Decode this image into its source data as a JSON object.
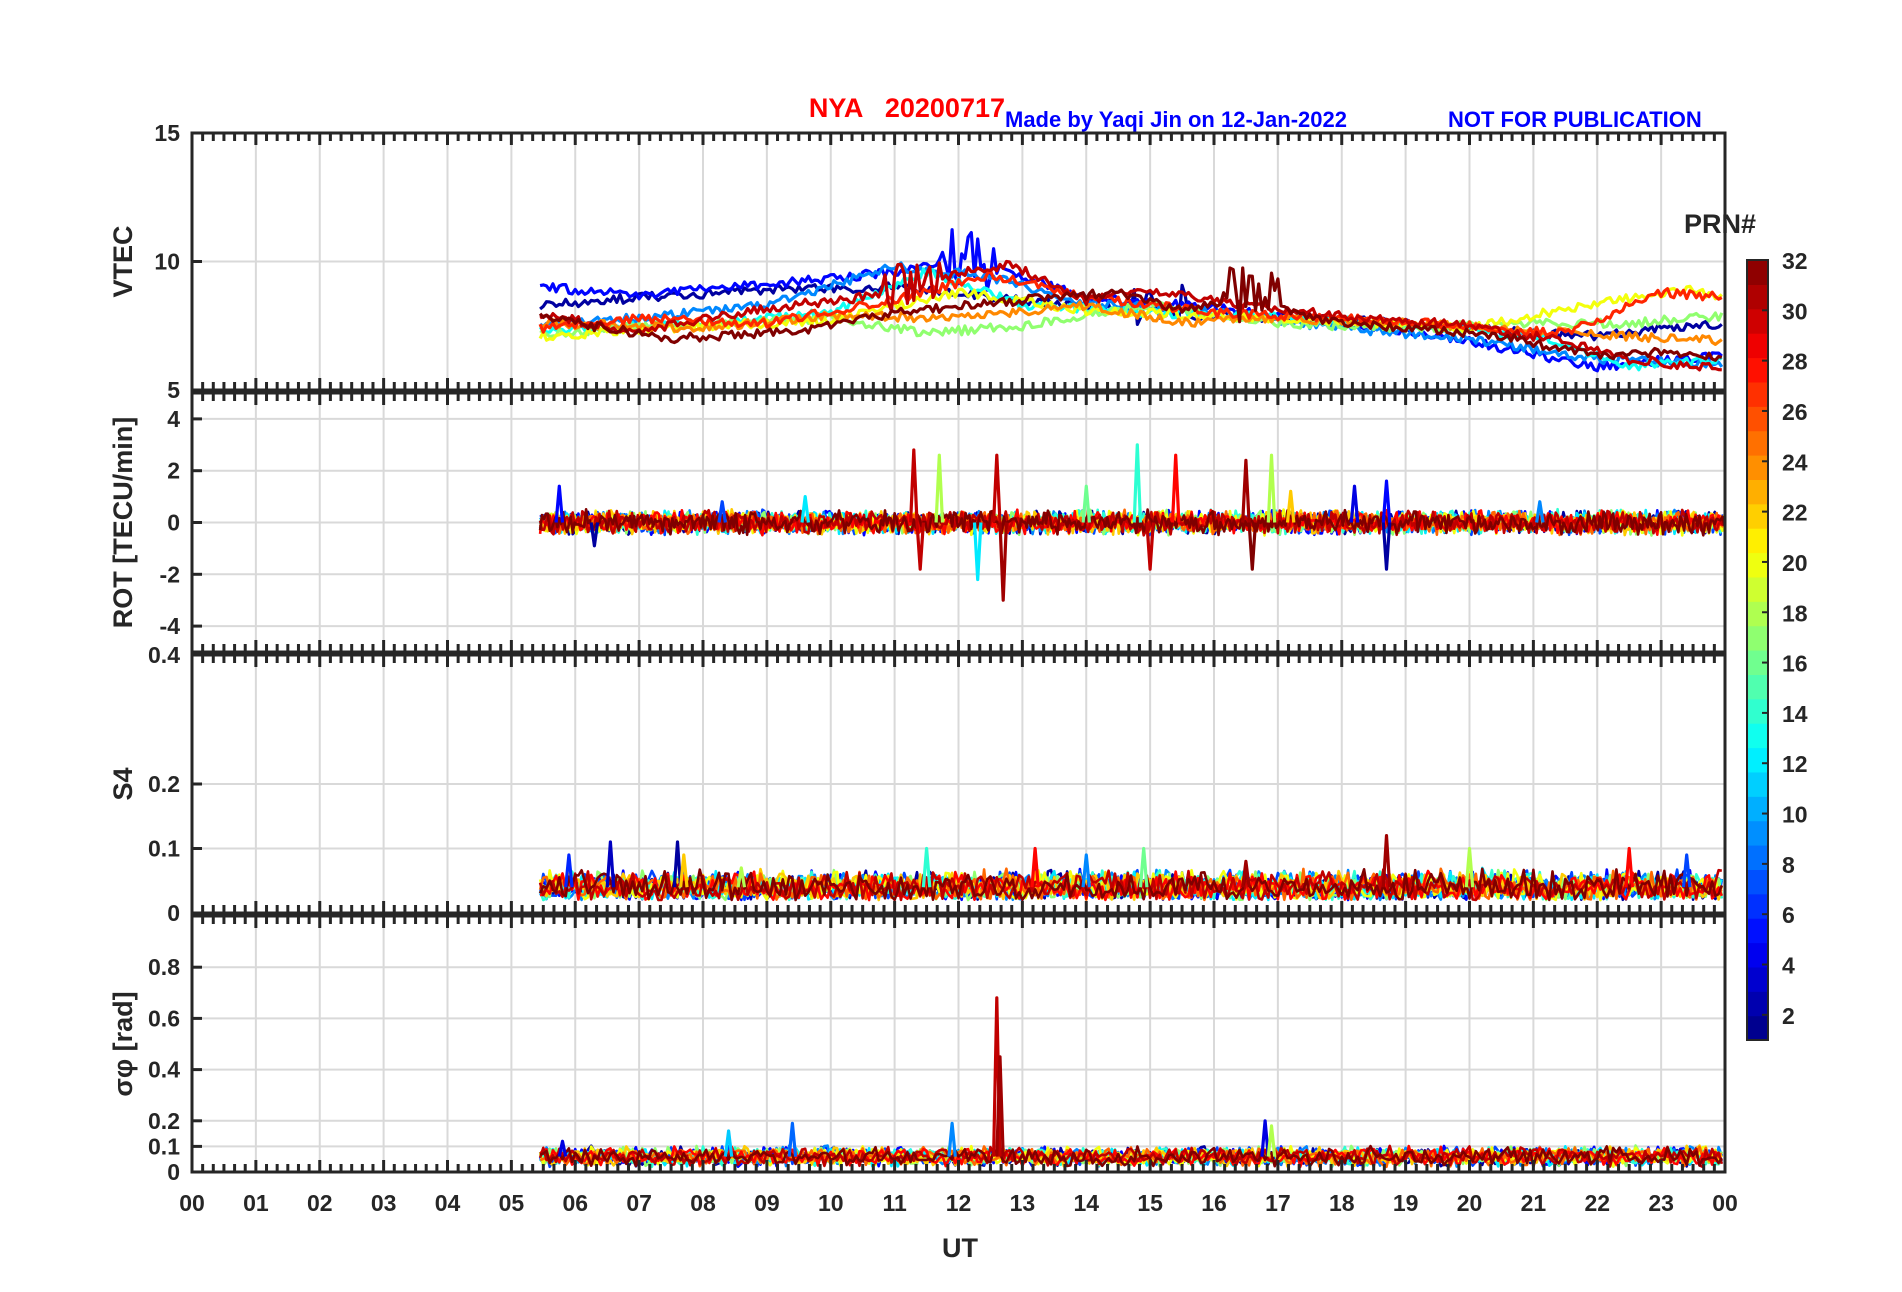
{
  "figure": {
    "title": "NYA   20200717",
    "credit": "Made by Yaqi Jin on 12-Jan-2022",
    "notice": "NOT FOR PUBLICATION"
  },
  "colors": {
    "title": "#ff0000",
    "notice": "#0000ff",
    "axis": "#262626",
    "grid": "#d9d9d9"
  },
  "chart_data": [
    {
      "type": "line",
      "ylabel": "VTEC",
      "ylim": [
        5,
        15
      ],
      "yticks": [
        5,
        10,
        15
      ],
      "data_start_hour": 5.45,
      "series": [
        {
          "prn": 2,
          "values": [
            [
              5.5,
              8.3
            ],
            [
              7,
              8.6
            ],
            [
              9,
              8.9
            ],
            [
              11,
              9.0
            ],
            [
              13,
              8.5
            ],
            [
              15,
              8.0
            ],
            [
              17,
              7.8
            ],
            [
              19,
              7.6
            ],
            [
              21,
              7.2
            ],
            [
              22,
              7.1
            ],
            [
              23,
              7.4
            ],
            [
              24,
              7.6
            ]
          ]
        },
        {
          "prn": 5,
          "values": [
            [
              5.5,
              9.0
            ],
            [
              7,
              8.7
            ],
            [
              9,
              9.1
            ],
            [
              11,
              9.6
            ],
            [
              12.2,
              10.1
            ],
            [
              14,
              8.6
            ],
            [
              16,
              8.2
            ],
            [
              18,
              7.6
            ],
            [
              20,
              6.9
            ],
            [
              22,
              5.9
            ],
            [
              24,
              6.4
            ]
          ]
        },
        {
          "prn": 9,
          "values": [
            [
              5.5,
              7.6
            ],
            [
              7,
              7.8
            ],
            [
              9,
              8.3
            ],
            [
              11,
              9.8
            ],
            [
              12.5,
              9.4
            ],
            [
              14,
              8.4
            ],
            [
              16,
              8.0
            ],
            [
              18,
              7.4
            ],
            [
              20,
              7.0
            ],
            [
              22,
              6.2
            ],
            [
              24,
              6.0
            ]
          ]
        },
        {
          "prn": 13,
          "values": [
            [
              5.5,
              7.3
            ],
            [
              8,
              7.6
            ],
            [
              10,
              8.0
            ],
            [
              11.5,
              9.6
            ],
            [
              13,
              8.3
            ],
            [
              15,
              8.0
            ],
            [
              17,
              7.9
            ],
            [
              19,
              7.5
            ],
            [
              21,
              7.1
            ],
            [
              22.5,
              5.9
            ],
            [
              24,
              6.2
            ]
          ]
        },
        {
          "prn": 17,
          "values": [
            [
              5.5,
              7.2
            ],
            [
              8,
              7.6
            ],
            [
              10,
              7.8
            ],
            [
              11.5,
              7.2
            ],
            [
              13,
              7.5
            ],
            [
              15,
              8.3
            ],
            [
              17,
              7.6
            ],
            [
              19,
              7.4
            ],
            [
              21,
              7.6
            ],
            [
              22.5,
              7.6
            ],
            [
              24,
              7.9
            ]
          ]
        },
        {
          "prn": 20,
          "values": [
            [
              5.5,
              7.1
            ],
            [
              8,
              7.5
            ],
            [
              10,
              7.7
            ],
            [
              12,
              8.8
            ],
            [
              14,
              8.1
            ],
            [
              16,
              7.9
            ],
            [
              18,
              7.7
            ],
            [
              20,
              7.4
            ],
            [
              22,
              8.4
            ],
            [
              23.5,
              8.9
            ],
            [
              24,
              8.6
            ]
          ]
        },
        {
          "prn": 24,
          "values": [
            [
              5.5,
              7.6
            ],
            [
              8,
              7.4
            ],
            [
              10,
              7.9
            ],
            [
              12,
              7.8
            ],
            [
              14,
              8.3
            ],
            [
              15.5,
              7.6
            ],
            [
              17,
              7.8
            ],
            [
              19,
              7.6
            ],
            [
              21,
              7.3
            ],
            [
              24,
              6.9
            ]
          ]
        },
        {
          "prn": 27,
          "values": [
            [
              5.5,
              7.4
            ],
            [
              7,
              7.8
            ],
            [
              9,
              7.6
            ],
            [
              11,
              8.5
            ],
            [
              12.5,
              9.5
            ],
            [
              14,
              8.6
            ],
            [
              16,
              8.0
            ],
            [
              18,
              7.8
            ],
            [
              20,
              7.5
            ],
            [
              21.5,
              7.2
            ],
            [
              23,
              8.8
            ],
            [
              24,
              8.6
            ]
          ]
        },
        {
          "prn": 30,
          "values": [
            [
              5.5,
              7.9
            ],
            [
              7,
              7.3
            ],
            [
              9,
              8.2
            ],
            [
              10.5,
              8.6
            ],
            [
              11.5,
              9.3
            ],
            [
              12.8,
              9.9
            ],
            [
              14,
              8.5
            ],
            [
              15,
              8.9
            ],
            [
              16.5,
              8.3
            ],
            [
              18,
              7.9
            ],
            [
              20,
              7.5
            ],
            [
              21.5,
              6.9
            ],
            [
              22.5,
              6.2
            ],
            [
              24,
              5.8
            ]
          ]
        },
        {
          "prn": 32,
          "values": [
            [
              5.5,
              7.8
            ],
            [
              7.5,
              7.0
            ],
            [
              9.5,
              7.3
            ],
            [
              11,
              8.0
            ],
            [
              13,
              8.5
            ],
            [
              14.5,
              8.8
            ],
            [
              15.5,
              8.1
            ],
            [
              16.5,
              8.6
            ],
            [
              17.5,
              7.8
            ],
            [
              19,
              7.4
            ],
            [
              20.5,
              7.1
            ],
            [
              22,
              6.3
            ],
            [
              23,
              6.5
            ],
            [
              24,
              6.2
            ]
          ]
        }
      ],
      "bursts": [
        {
          "hour": 11.3,
          "prn": 30,
          "amp": 1.0
        },
        {
          "hour": 12.2,
          "prn": 5,
          "amp": 1.2
        },
        {
          "hour": 15.2,
          "prn": 2,
          "amp": 1.0
        },
        {
          "hour": 16.6,
          "prn": 32,
          "amp": 1.3
        }
      ]
    },
    {
      "type": "line",
      "ylabel": "ROT [TECU/min]",
      "ylim": [
        -5,
        5
      ],
      "yticks": [
        -4,
        -2,
        0,
        2,
        4
      ],
      "data_start_hour": 5.45,
      "baseline": 0,
      "noise_amplitude": 0.35,
      "spikes": [
        {
          "hour": 5.75,
          "value": 1.4,
          "prn": 5
        },
        {
          "hour": 6.3,
          "value": -0.9,
          "prn": 2
        },
        {
          "hour": 8.3,
          "value": 0.8,
          "prn": 7
        },
        {
          "hour": 9.6,
          "value": 1.0,
          "prn": 12
        },
        {
          "hour": 11.3,
          "value": 2.8,
          "prn": 30
        },
        {
          "hour": 11.4,
          "value": -1.8,
          "prn": 30
        },
        {
          "hour": 11.7,
          "value": 2.6,
          "prn": 18
        },
        {
          "hour": 12.3,
          "value": -2.2,
          "prn": 12
        },
        {
          "hour": 12.6,
          "value": 2.6,
          "prn": 30
        },
        {
          "hour": 12.7,
          "value": -3.0,
          "prn": 31
        },
        {
          "hour": 14.0,
          "value": 1.4,
          "prn": 16
        },
        {
          "hour": 14.8,
          "value": 3.0,
          "prn": 14
        },
        {
          "hour": 15.0,
          "value": -1.8,
          "prn": 30
        },
        {
          "hour": 15.4,
          "value": 2.6,
          "prn": 28
        },
        {
          "hour": 16.5,
          "value": 2.4,
          "prn": 31
        },
        {
          "hour": 16.6,
          "value": -1.8,
          "prn": 32
        },
        {
          "hour": 16.9,
          "value": 2.6,
          "prn": 18
        },
        {
          "hour": 17.2,
          "value": 1.2,
          "prn": 22
        },
        {
          "hour": 18.2,
          "value": 1.4,
          "prn": 4
        },
        {
          "hour": 18.7,
          "value": -1.8,
          "prn": 2
        },
        {
          "hour": 18.7,
          "value": 1.6,
          "prn": 5
        },
        {
          "hour": 21.1,
          "value": 0.8,
          "prn": 9
        }
      ]
    },
    {
      "type": "line",
      "ylabel": "S4",
      "ylim": [
        0,
        0.4
      ],
      "yticks": [
        0,
        0.1,
        0.2,
        0.4
      ],
      "data_start_hour": 5.45,
      "baseline": 0.04,
      "noise_amplitude": 0.02,
      "spikes": [
        {
          "hour": 5.9,
          "value": 0.09,
          "prn": 6
        },
        {
          "hour": 6.55,
          "value": 0.11,
          "prn": 3
        },
        {
          "hour": 7.6,
          "value": 0.11,
          "prn": 2
        },
        {
          "hour": 7.7,
          "value": 0.09,
          "prn": 22
        },
        {
          "hour": 8.6,
          "value": 0.07,
          "prn": 18
        },
        {
          "hour": 11.5,
          "value": 0.1,
          "prn": 14
        },
        {
          "hour": 13.2,
          "value": 0.1,
          "prn": 28
        },
        {
          "hour": 14.0,
          "value": 0.09,
          "prn": 9
        },
        {
          "hour": 14.9,
          "value": 0.1,
          "prn": 16
        },
        {
          "hour": 16.5,
          "value": 0.08,
          "prn": 31
        },
        {
          "hour": 18.7,
          "value": 0.12,
          "prn": 31
        },
        {
          "hour": 20.0,
          "value": 0.1,
          "prn": 18
        },
        {
          "hour": 22.5,
          "value": 0.1,
          "prn": 28
        },
        {
          "hour": 23.4,
          "value": 0.09,
          "prn": 7
        }
      ]
    },
    {
      "type": "line",
      "ylabel": "σφ [rad]",
      "ylim": [
        0,
        1
      ],
      "yticks": [
        0,
        0.1,
        0.2,
        0.4,
        0.6,
        0.8
      ],
      "data_start_hour": 5.45,
      "baseline": 0.06,
      "noise_amplitude": 0.03,
      "spikes": [
        {
          "hour": 5.8,
          "value": 0.12,
          "prn": 4
        },
        {
          "hour": 8.4,
          "value": 0.16,
          "prn": 11
        },
        {
          "hour": 9.4,
          "value": 0.19,
          "prn": 8
        },
        {
          "hour": 11.9,
          "value": 0.19,
          "prn": 9
        },
        {
          "hour": 12.6,
          "value": 0.68,
          "prn": 30
        },
        {
          "hour": 12.65,
          "value": 0.45,
          "prn": 31
        },
        {
          "hour": 16.8,
          "value": 0.2,
          "prn": 4
        },
        {
          "hour": 16.9,
          "value": 0.18,
          "prn": 18
        }
      ]
    }
  ],
  "x_axis": {
    "label": "UT",
    "range": [
      0,
      24
    ],
    "tick_labels": [
      "00",
      "01",
      "02",
      "03",
      "04",
      "05",
      "06",
      "07",
      "08",
      "09",
      "10",
      "11",
      "12",
      "13",
      "14",
      "15",
      "16",
      "17",
      "18",
      "19",
      "20",
      "21",
      "22",
      "23",
      "00"
    ]
  },
  "colorbar": {
    "title": "PRN#",
    "range": [
      1,
      32
    ],
    "colormap": "jet",
    "tick_labels": [
      "2",
      "4",
      "6",
      "8",
      "10",
      "12",
      "14",
      "16",
      "18",
      "20",
      "22",
      "24",
      "26",
      "28",
      "30",
      "32"
    ]
  }
}
